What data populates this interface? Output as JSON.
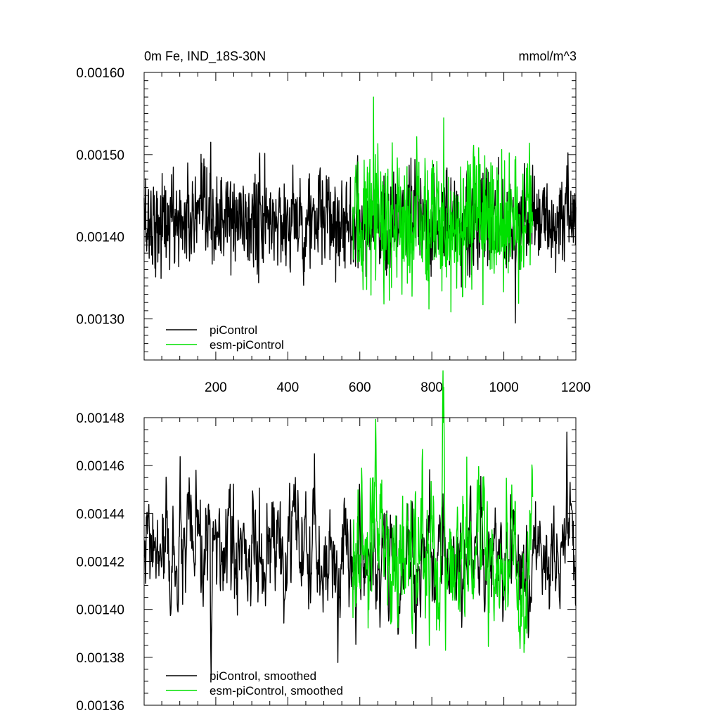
{
  "colors": {
    "piControl": "#000000",
    "esm_piControl": "#00e000",
    "axis": "#000000",
    "background": "#ffffff"
  },
  "chart_data": [
    {
      "type": "line",
      "title": "0m Fe, IND_18S-30N",
      "units": "mmol/m^3",
      "xlim": [
        1,
        1200
      ],
      "ylim": [
        0.00125,
        0.0016
      ],
      "xticks": [
        200,
        400,
        600,
        800,
        1000,
        1200
      ],
      "xtick_labels": [
        "200",
        "400",
        "600",
        "800",
        "1000",
        "1200"
      ],
      "yticks": [
        0.0013,
        0.0014,
        0.0015,
        0.0016
      ],
      "ytick_labels": [
        "0.00130",
        "0.00140",
        "0.00150",
        "0.00160"
      ],
      "grid": false,
      "legend_position": "bottom-left",
      "series": [
        {
          "name": "piControl",
          "color": "#000000",
          "x_range": [
            1,
            1200
          ],
          "mean": 0.001419,
          "spread": 3e-05,
          "smooth": 0.15,
          "peak_max": 0.001515,
          "dip_min": 0.001295
        },
        {
          "name": "esm-piControl",
          "color": "#00e000",
          "x_range": [
            580,
            1080
          ],
          "mean": 0.00142,
          "spread": 4.2e-05,
          "smooth": 0.1,
          "peak_max": 0.00157,
          "dip_min": 0.001312
        }
      ]
    },
    {
      "type": "line",
      "xlim": [
        1,
        1200
      ],
      "ylim": [
        0.00136,
        0.00148
      ],
      "xticks": [
        200,
        400,
        600,
        800,
        1000,
        1200
      ],
      "yticks": [
        0.00136,
        0.00138,
        0.0014,
        0.00142,
        0.00144,
        0.00146,
        0.00148
      ],
      "ytick_labels": [
        "0.00136",
        "0.00138",
        "0.00140",
        "0.00142",
        "0.00144",
        "0.00146",
        "0.00148"
      ],
      "grid": false,
      "legend_position": "bottom-left",
      "series": [
        {
          "name": "piControl, smoothed",
          "color": "#000000",
          "x_range": [
            1,
            1200
          ],
          "mean": 0.001423,
          "spread": 1.3e-05,
          "smooth": 0.7,
          "peak_max": 0.001474,
          "dip_min": 0.001371
        },
        {
          "name": "esm-piControl, smoothed",
          "color": "#00e000",
          "x_range": [
            580,
            1080
          ],
          "mean": 0.001423,
          "spread": 1.8e-05,
          "smooth": 0.7,
          "peak_max": 0.001478,
          "dip_min": 0.001382
        }
      ]
    }
  ]
}
